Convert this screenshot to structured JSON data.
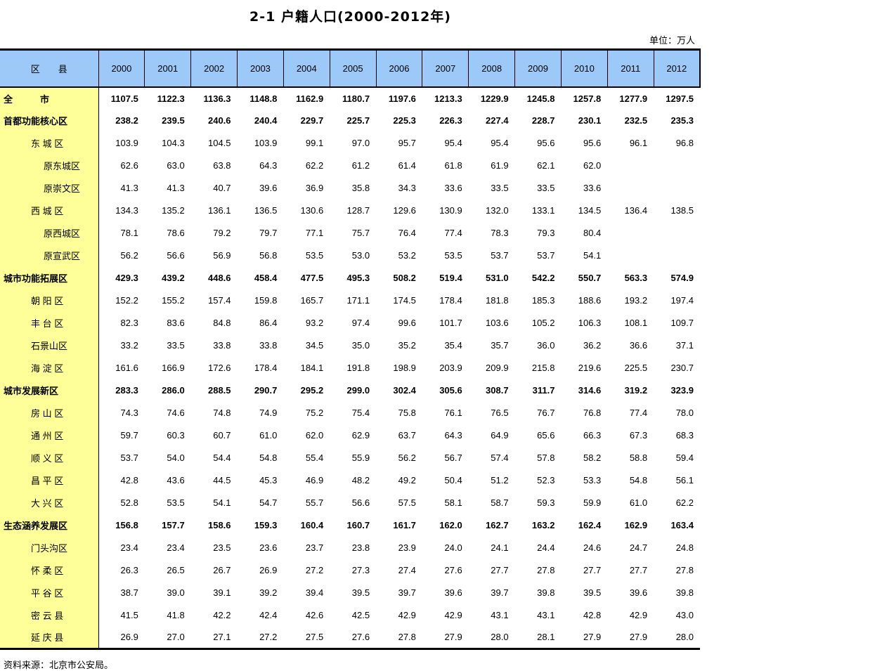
{
  "title": "2-1 户籍人口(2000-2012年)",
  "unit_label": "单位：万人",
  "source": "资料来源：北京市公安局。",
  "colors": {
    "header_bg": "#9CC9F8",
    "label_col_bg": "#FFFF99",
    "border": "#000000"
  },
  "table": {
    "corner_header": "区　　县",
    "years": [
      "2000",
      "2001",
      "2002",
      "2003",
      "2004",
      "2005",
      "2006",
      "2007",
      "2008",
      "2009",
      "2010",
      "2011",
      "2012"
    ],
    "rows": [
      {
        "label": "全　　　市",
        "indent": 0,
        "bold": true,
        "values": [
          "1107.5",
          "1122.3",
          "1136.3",
          "1148.8",
          "1162.9",
          "1180.7",
          "1197.6",
          "1213.3",
          "1229.9",
          "1245.8",
          "1257.8",
          "1277.9",
          "1297.5"
        ]
      },
      {
        "label": "首都功能核心区",
        "indent": 0,
        "bold": true,
        "values": [
          "238.2",
          "239.5",
          "240.6",
          "240.4",
          "229.7",
          "225.7",
          "225.3",
          "226.3",
          "227.4",
          "228.7",
          "230.1",
          "232.5",
          "235.3"
        ]
      },
      {
        "label": "东 城 区",
        "indent": 1,
        "bold": false,
        "values": [
          "103.9",
          "104.3",
          "104.5",
          "103.9",
          "99.1",
          "97.0",
          "95.7",
          "95.4",
          "95.4",
          "95.6",
          "95.6",
          "96.1",
          "96.8"
        ]
      },
      {
        "label": "原东城区",
        "indent": 2,
        "bold": false,
        "values": [
          "62.6",
          "63.0",
          "63.8",
          "64.3",
          "62.2",
          "61.2",
          "61.4",
          "61.8",
          "61.9",
          "62.1",
          "62.0",
          "",
          ""
        ]
      },
      {
        "label": "原崇文区",
        "indent": 2,
        "bold": false,
        "values": [
          "41.3",
          "41.3",
          "40.7",
          "39.6",
          "36.9",
          "35.8",
          "34.3",
          "33.6",
          "33.5",
          "33.5",
          "33.6",
          "",
          ""
        ]
      },
      {
        "label": "西 城 区",
        "indent": 1,
        "bold": false,
        "values": [
          "134.3",
          "135.2",
          "136.1",
          "136.5",
          "130.6",
          "128.7",
          "129.6",
          "130.9",
          "132.0",
          "133.1",
          "134.5",
          "136.4",
          "138.5"
        ]
      },
      {
        "label": "原西城区",
        "indent": 2,
        "bold": false,
        "values": [
          "78.1",
          "78.6",
          "79.2",
          "79.7",
          "77.1",
          "75.7",
          "76.4",
          "77.4",
          "78.3",
          "79.3",
          "80.4",
          "",
          ""
        ]
      },
      {
        "label": "原宣武区",
        "indent": 2,
        "bold": false,
        "values": [
          "56.2",
          "56.6",
          "56.9",
          "56.8",
          "53.5",
          "53.0",
          "53.2",
          "53.5",
          "53.7",
          "53.7",
          "54.1",
          "",
          ""
        ]
      },
      {
        "label": "城市功能拓展区",
        "indent": 0,
        "bold": true,
        "values": [
          "429.3",
          "439.2",
          "448.6",
          "458.4",
          "477.5",
          "495.3",
          "508.2",
          "519.4",
          "531.0",
          "542.2",
          "550.7",
          "563.3",
          "574.9"
        ]
      },
      {
        "label": "朝 阳 区",
        "indent": 1,
        "bold": false,
        "values": [
          "152.2",
          "155.2",
          "157.4",
          "159.8",
          "165.7",
          "171.1",
          "174.5",
          "178.4",
          "181.8",
          "185.3",
          "188.6",
          "193.2",
          "197.4"
        ]
      },
      {
        "label": "丰 台 区",
        "indent": 1,
        "bold": false,
        "values": [
          "82.3",
          "83.6",
          "84.8",
          "86.4",
          "93.2",
          "97.4",
          "99.6",
          "101.7",
          "103.6",
          "105.2",
          "106.3",
          "108.1",
          "109.7"
        ]
      },
      {
        "label": "石景山区",
        "indent": 1,
        "bold": false,
        "values": [
          "33.2",
          "33.5",
          "33.8",
          "33.8",
          "34.5",
          "35.0",
          "35.2",
          "35.4",
          "35.7",
          "36.0",
          "36.2",
          "36.6",
          "37.1"
        ]
      },
      {
        "label": "海 淀 区",
        "indent": 1,
        "bold": false,
        "values": [
          "161.6",
          "166.9",
          "172.6",
          "178.4",
          "184.1",
          "191.8",
          "198.9",
          "203.9",
          "209.9",
          "215.8",
          "219.6",
          "225.5",
          "230.7"
        ]
      },
      {
        "label": "城市发展新区",
        "indent": 0,
        "bold": true,
        "values": [
          "283.3",
          "286.0",
          "288.5",
          "290.7",
          "295.2",
          "299.0",
          "302.4",
          "305.6",
          "308.7",
          "311.7",
          "314.6",
          "319.2",
          "323.9"
        ]
      },
      {
        "label": "房 山 区",
        "indent": 1,
        "bold": false,
        "values": [
          "74.3",
          "74.6",
          "74.8",
          "74.9",
          "75.2",
          "75.4",
          "75.8",
          "76.1",
          "76.5",
          "76.7",
          "76.8",
          "77.4",
          "78.0"
        ]
      },
      {
        "label": "通 州 区",
        "indent": 1,
        "bold": false,
        "values": [
          "59.7",
          "60.3",
          "60.7",
          "61.0",
          "62.0",
          "62.9",
          "63.7",
          "64.3",
          "64.9",
          "65.6",
          "66.3",
          "67.3",
          "68.3"
        ]
      },
      {
        "label": "顺 义 区",
        "indent": 1,
        "bold": false,
        "values": [
          "53.7",
          "54.0",
          "54.4",
          "54.8",
          "55.4",
          "55.9",
          "56.2",
          "56.7",
          "57.4",
          "57.8",
          "58.2",
          "58.8",
          "59.4"
        ]
      },
      {
        "label": "昌 平 区",
        "indent": 1,
        "bold": false,
        "values": [
          "42.8",
          "43.6",
          "44.5",
          "45.3",
          "46.9",
          "48.2",
          "49.2",
          "50.4",
          "51.2",
          "52.3",
          "53.3",
          "54.8",
          "56.1"
        ]
      },
      {
        "label": "大 兴 区",
        "indent": 1,
        "bold": false,
        "values": [
          "52.8",
          "53.5",
          "54.1",
          "54.7",
          "55.7",
          "56.6",
          "57.5",
          "58.1",
          "58.7",
          "59.3",
          "59.9",
          "61.0",
          "62.2"
        ]
      },
      {
        "label": "生态涵养发展区",
        "indent": 0,
        "bold": true,
        "values": [
          "156.8",
          "157.7",
          "158.6",
          "159.3",
          "160.4",
          "160.7",
          "161.7",
          "162.0",
          "162.7",
          "163.2",
          "162.4",
          "162.9",
          "163.4"
        ]
      },
      {
        "label": "门头沟区",
        "indent": 1,
        "bold": false,
        "values": [
          "23.4",
          "23.4",
          "23.5",
          "23.6",
          "23.7",
          "23.8",
          "23.9",
          "24.0",
          "24.1",
          "24.4",
          "24.6",
          "24.7",
          "24.8"
        ]
      },
      {
        "label": "怀 柔 区",
        "indent": 1,
        "bold": false,
        "values": [
          "26.3",
          "26.5",
          "26.7",
          "26.9",
          "27.2",
          "27.3",
          "27.4",
          "27.6",
          "27.7",
          "27.8",
          "27.7",
          "27.7",
          "27.8"
        ]
      },
      {
        "label": "平 谷 区",
        "indent": 1,
        "bold": false,
        "values": [
          "38.7",
          "39.0",
          "39.1",
          "39.2",
          "39.4",
          "39.5",
          "39.7",
          "39.6",
          "39.7",
          "39.8",
          "39.5",
          "39.6",
          "39.8"
        ]
      },
      {
        "label": "密 云 县",
        "indent": 1,
        "bold": false,
        "values": [
          "41.5",
          "41.8",
          "42.2",
          "42.4",
          "42.6",
          "42.5",
          "42.9",
          "42.9",
          "43.1",
          "43.1",
          "42.8",
          "42.9",
          "43.0"
        ]
      },
      {
        "label": "延 庆 县",
        "indent": 1,
        "bold": false,
        "values": [
          "26.9",
          "27.0",
          "27.1",
          "27.2",
          "27.5",
          "27.6",
          "27.8",
          "27.9",
          "28.0",
          "28.1",
          "27.9",
          "27.9",
          "28.0"
        ]
      }
    ]
  }
}
